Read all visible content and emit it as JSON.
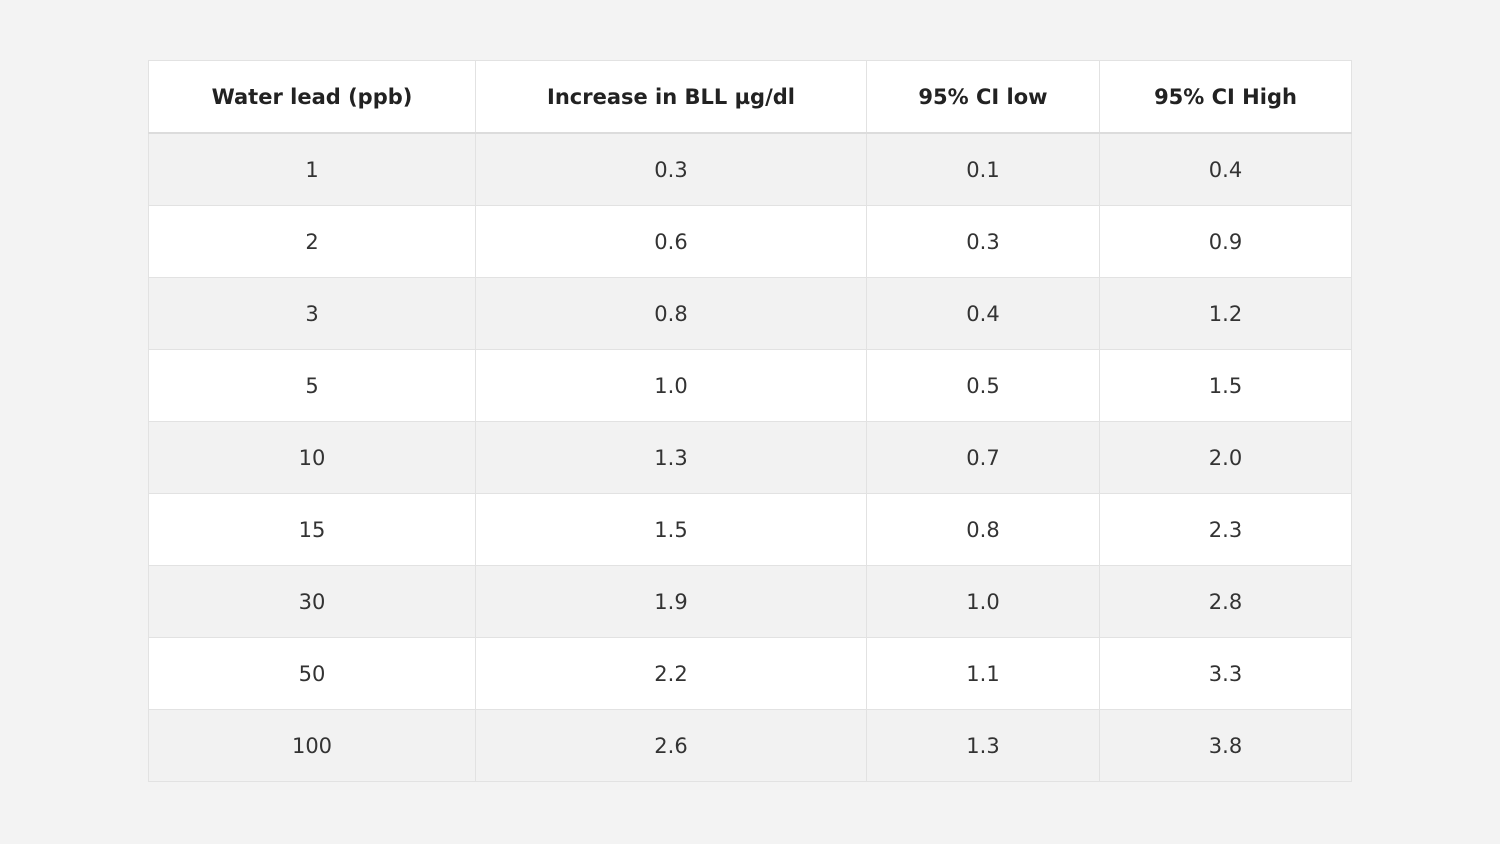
{
  "table": {
    "headers": [
      "Water lead (ppb)",
      "Increase in BLL µg/dl",
      "95% CI low",
      "95% CI High"
    ],
    "rows": [
      [
        "1",
        "0.3",
        "0.1",
        "0.4"
      ],
      [
        "2",
        "0.6",
        "0.3",
        "0.9"
      ],
      [
        "3",
        "0.8",
        "0.4",
        "1.2"
      ],
      [
        "5",
        "1.0",
        "0.5",
        "1.5"
      ],
      [
        "10",
        "1.3",
        "0.7",
        "2.0"
      ],
      [
        "15",
        "1.5",
        "0.8",
        "2.3"
      ],
      [
        "30",
        "1.9",
        "1.0",
        "2.8"
      ],
      [
        "50",
        "2.2",
        "1.1",
        "3.3"
      ],
      [
        "100",
        "2.6",
        "1.3",
        "3.8"
      ]
    ]
  }
}
